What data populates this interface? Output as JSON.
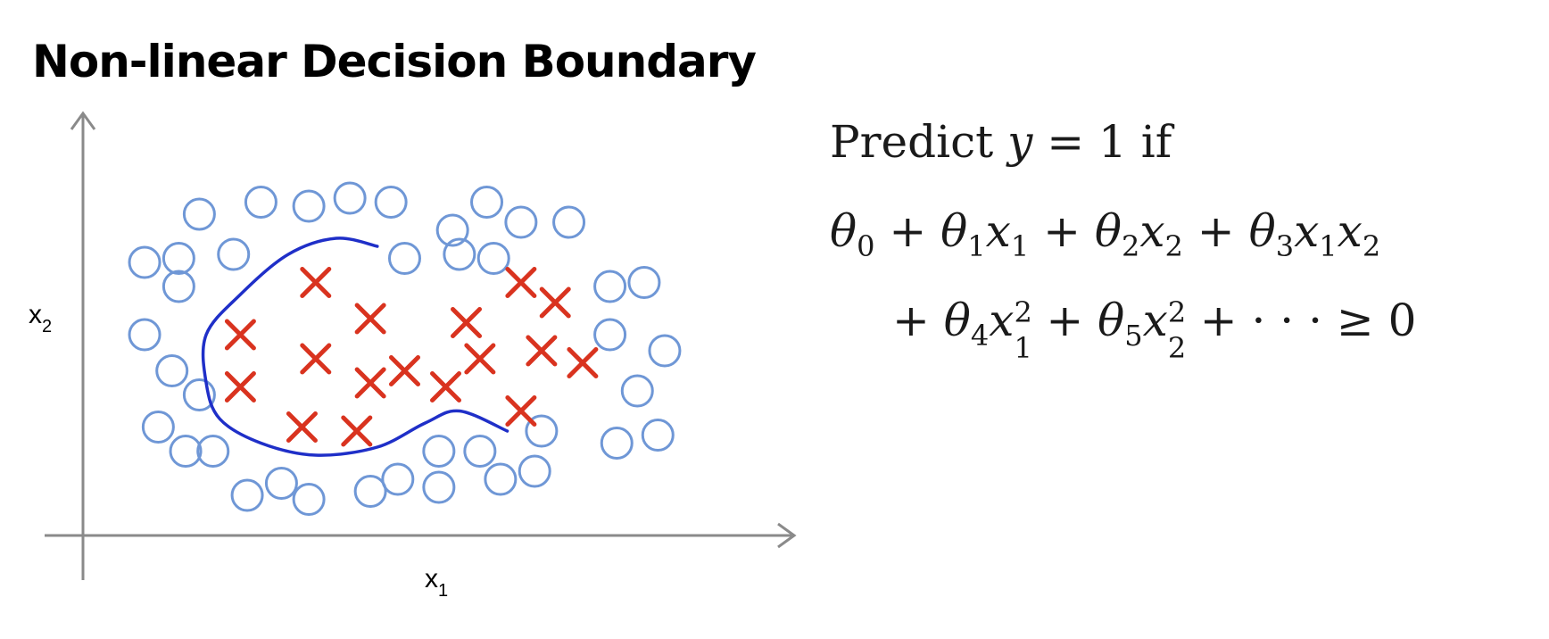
{
  "title": "Non-linear Decision Boundary",
  "chart_data": {
    "type": "scatter",
    "xlabel": "x",
    "xlabel_sub": "1",
    "ylabel": "x",
    "ylabel_sub": "2",
    "xlim": [
      0,
      100
    ],
    "ylim": [
      0,
      100
    ],
    "grid": false,
    "series": [
      {
        "marker": "circle",
        "color": "#6f97d6",
        "points": [
          [
            17,
            80
          ],
          [
            26,
            83
          ],
          [
            33,
            82
          ],
          [
            39,
            84
          ],
          [
            45,
            83
          ],
          [
            59,
            83
          ],
          [
            64,
            78
          ],
          [
            71,
            78
          ],
          [
            14,
            69
          ],
          [
            22,
            70
          ],
          [
            54,
            76
          ],
          [
            55,
            70
          ],
          [
            60,
            69
          ],
          [
            47,
            69
          ],
          [
            9,
            68
          ],
          [
            14,
            62
          ],
          [
            77,
            62
          ],
          [
            82,
            63
          ],
          [
            9,
            50
          ],
          [
            77,
            50
          ],
          [
            85,
            46
          ],
          [
            13,
            41
          ],
          [
            17,
            35
          ],
          [
            81,
            36
          ],
          [
            11,
            27
          ],
          [
            15,
            21
          ],
          [
            19,
            21
          ],
          [
            52,
            21
          ],
          [
            58,
            21
          ],
          [
            67,
            26
          ],
          [
            78,
            23
          ],
          [
            84,
            25
          ],
          [
            24,
            10
          ],
          [
            29,
            13
          ],
          [
            33,
            9
          ],
          [
            42,
            11
          ],
          [
            46,
            14
          ],
          [
            52,
            12
          ],
          [
            61,
            14
          ],
          [
            66,
            16
          ]
        ]
      },
      {
        "marker": "x",
        "color": "#d9331f",
        "points": [
          [
            34,
            63
          ],
          [
            23,
            50
          ],
          [
            42,
            54
          ],
          [
            34,
            44
          ],
          [
            23,
            37
          ],
          [
            47,
            41
          ],
          [
            42,
            38
          ],
          [
            53,
            37
          ],
          [
            56,
            53
          ],
          [
            58,
            44
          ],
          [
            64,
            63
          ],
          [
            69,
            58
          ],
          [
            67,
            46
          ],
          [
            73,
            43
          ],
          [
            64,
            31
          ],
          [
            32,
            27
          ],
          [
            40,
            26
          ]
        ]
      }
    ],
    "boundary": {
      "color": "#1f2fc8",
      "path": [
        [
          43,
          72
        ],
        [
          37,
          74
        ],
        [
          30,
          70
        ],
        [
          23,
          60
        ],
        [
          18,
          50
        ],
        [
          18,
          38
        ],
        [
          20,
          29
        ],
        [
          26,
          23
        ],
        [
          34,
          20
        ],
        [
          43,
          22
        ],
        [
          50,
          28
        ],
        [
          55,
          31
        ],
        [
          62,
          26
        ]
      ]
    }
  },
  "formula": {
    "line1": {
      "a": "Predict ",
      "b": "y",
      "c": " = 1 if"
    },
    "theta": "θ",
    "x": "x",
    "plus": " + ",
    "s0": "0",
    "s1": "1",
    "s2": "2",
    "s3": "3",
    "s4": "4",
    "s5": "5",
    "sq": "2",
    "tail": " + · · · ≥ 0"
  }
}
